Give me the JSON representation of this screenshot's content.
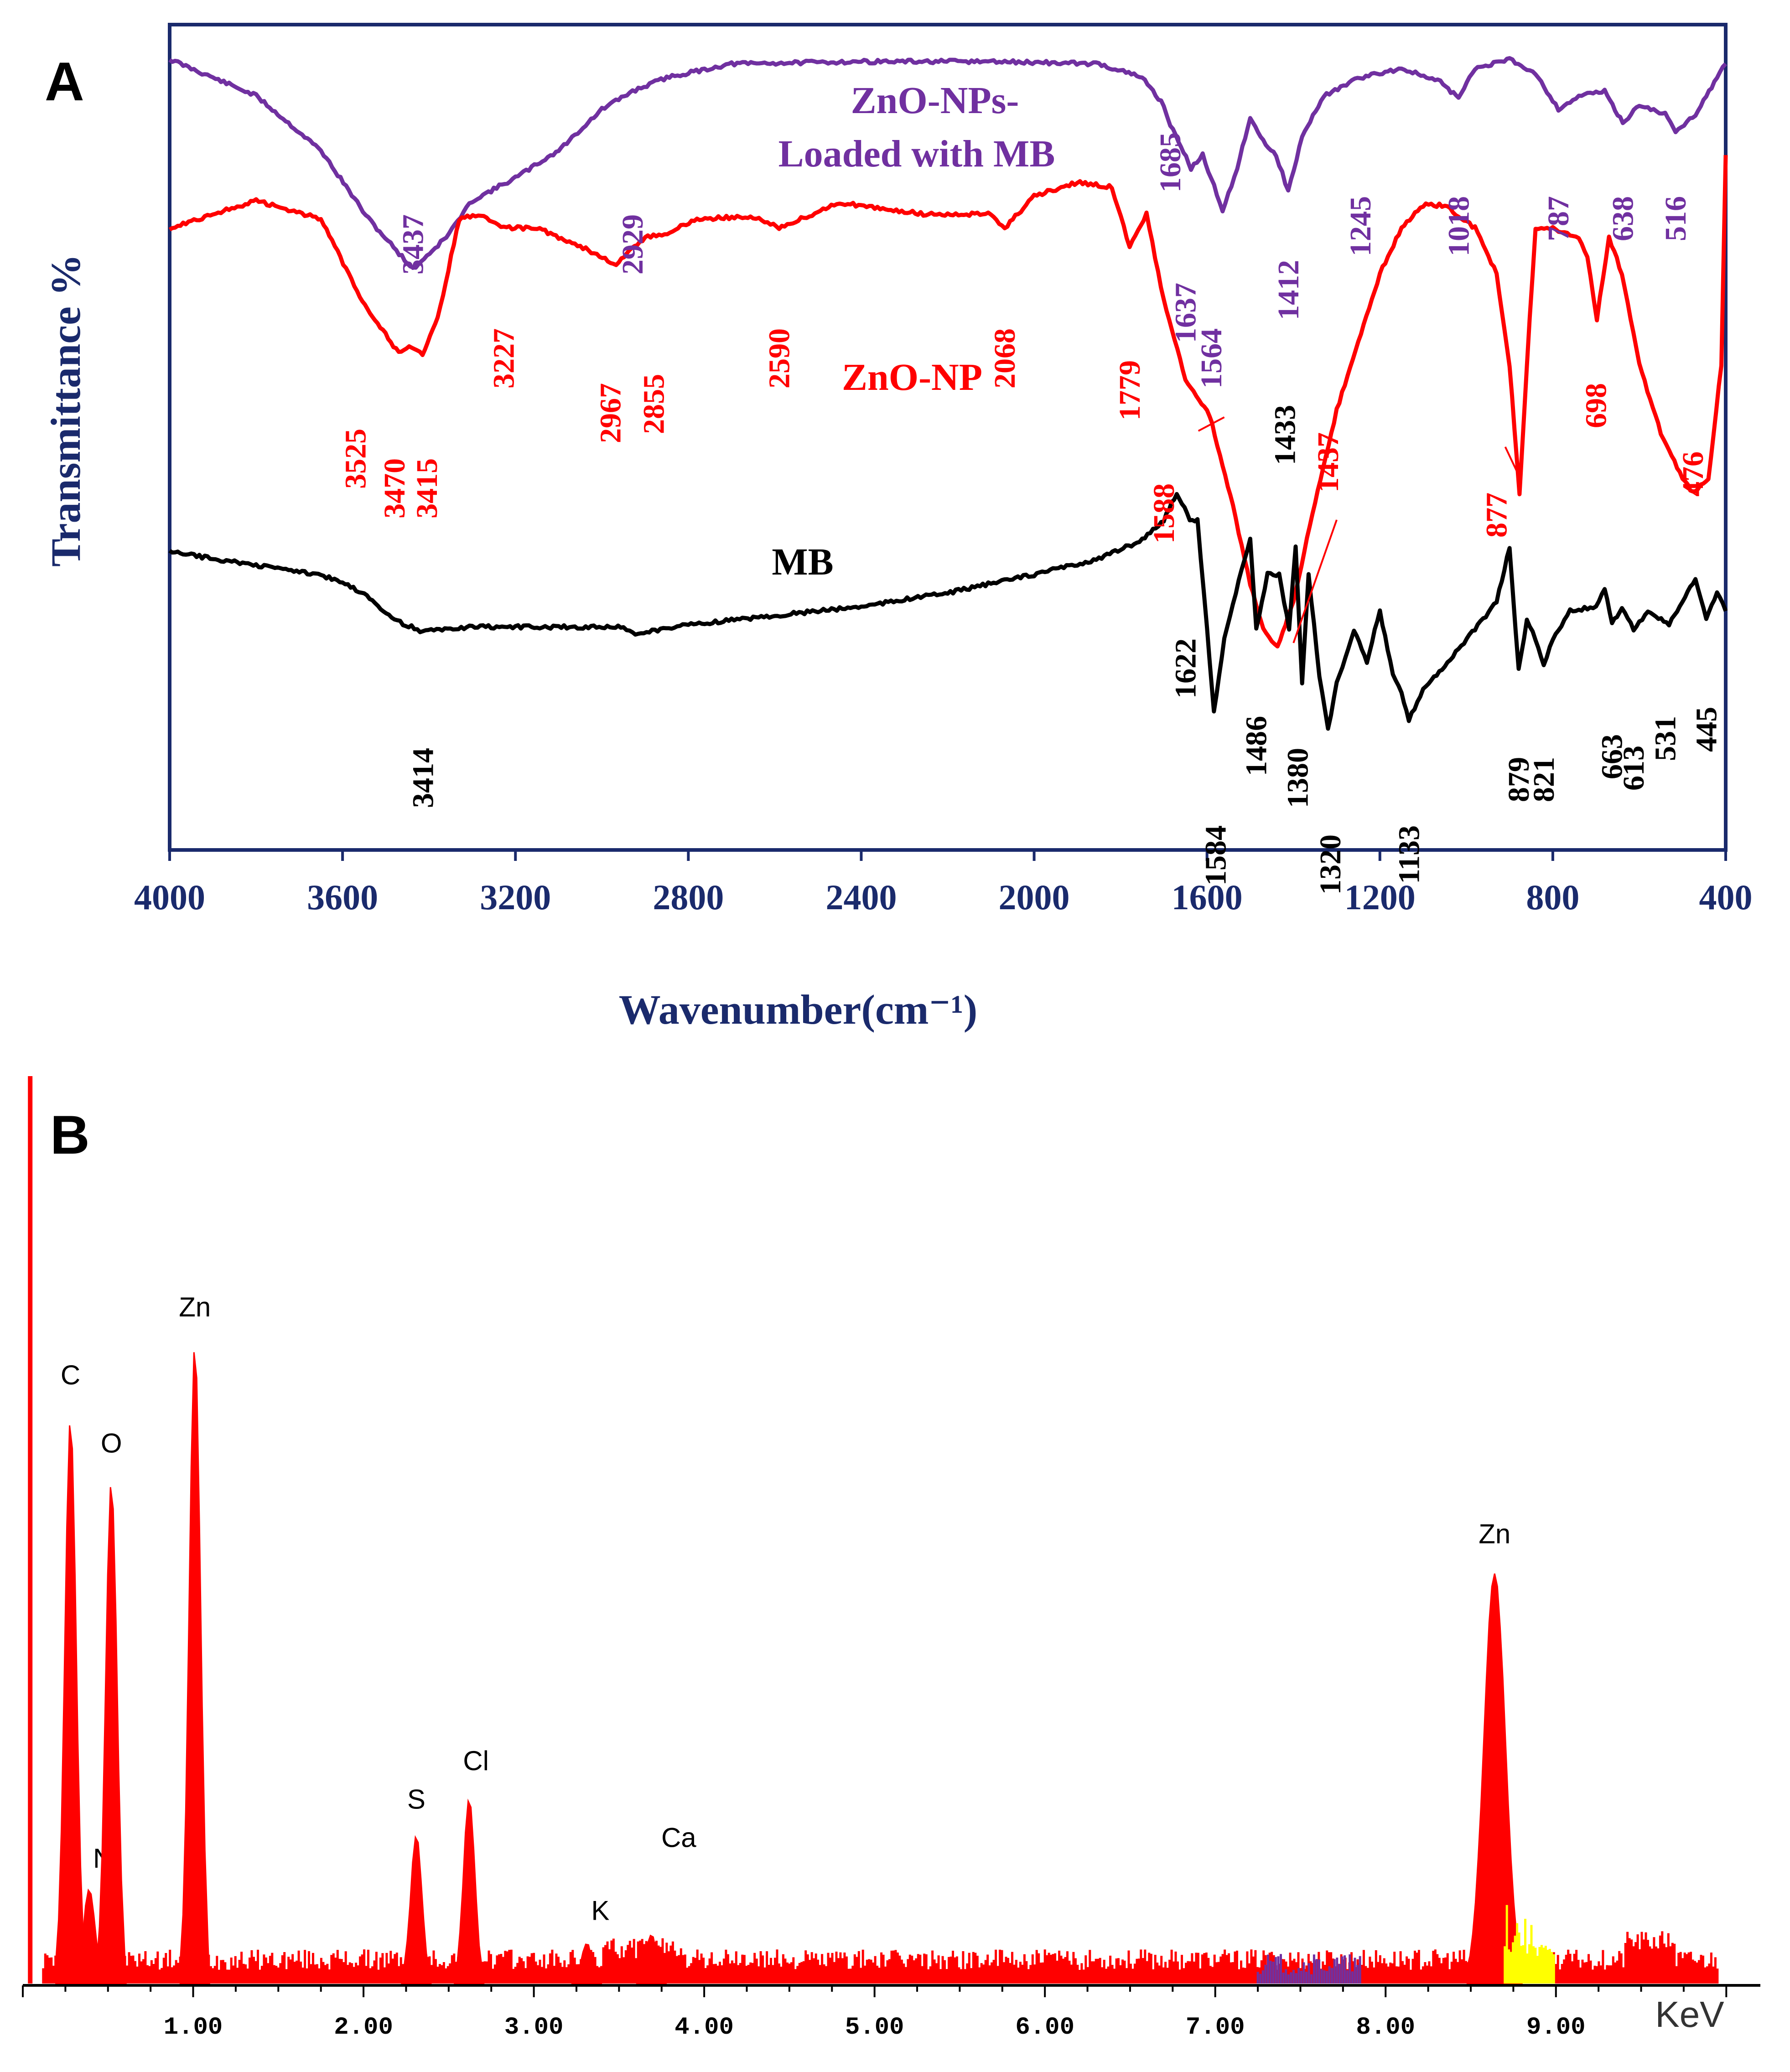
{
  "chart_data": [
    {
      "panel": "A",
      "type": "line",
      "xlabel": "Wavenumber(cm⁻¹)",
      "ylabel": "Transmittance %",
      "xlim": [
        4000,
        400
      ],
      "x_ticks": [
        4000,
        3600,
        3200,
        2800,
        2400,
        2000,
        1600,
        1200,
        800,
        400
      ],
      "series": [
        {
          "name": "ZnO-NPs-\nLoaded with MB",
          "label_lines": [
            "ZnO-NPs-",
            "Loaded with MB"
          ],
          "color": "#7030a0",
          "peaks": [
            "3437",
            "2929",
            "1685",
            "1637",
            "1564",
            "1412",
            "1245",
            "1018",
            "787",
            "638",
            "516"
          ]
        },
        {
          "name": "ZnO-NP",
          "label_lines": [
            "ZnO-NP"
          ],
          "color": "#ff0000",
          "peaks": [
            "3525",
            "3470",
            "3415",
            "3227",
            "2967",
            "2855",
            "2590",
            "2068",
            "1779",
            "1588",
            "1437",
            "877",
            "698",
            "476"
          ]
        },
        {
          "name": "MB",
          "label_lines": [
            "MB"
          ],
          "color": "#000000",
          "peaks": [
            "3414",
            "1622",
            "1584",
            "1486",
            "1433",
            "1380",
            "1320",
            "1133",
            "879",
            "821",
            "663",
            "613",
            "531",
            "445"
          ]
        }
      ]
    },
    {
      "panel": "B",
      "type": "bar",
      "title": "",
      "xlabel": "KeV",
      "xlim": [
        0,
        10.2
      ],
      "x_ticks": [
        "1.00",
        "2.00",
        "3.00",
        "4.00",
        "5.00",
        "6.00",
        "7.00",
        "8.00",
        "9.00"
      ],
      "bar_color": "#ff0000",
      "element_peaks": [
        {
          "element": "C",
          "energy": 0.28,
          "height": 0.62
        },
        {
          "element": "N",
          "energy": 0.39,
          "height": 0.1
        },
        {
          "element": "O",
          "energy": 0.52,
          "height": 0.55
        },
        {
          "element": "Zn",
          "energy": 1.01,
          "height": 0.7
        },
        {
          "element": "S",
          "energy": 2.31,
          "height": 0.16
        },
        {
          "element": "Cl",
          "energy": 2.62,
          "height": 0.2
        },
        {
          "element": "K",
          "energy": 3.31,
          "height": 0.04
        },
        {
          "element": "Ca",
          "energy": 3.69,
          "height": 0.05
        },
        {
          "element": "Zn",
          "energy": 8.64,
          "height": 0.45
        }
      ]
    }
  ],
  "panels": {
    "A": "A",
    "B": "B"
  }
}
